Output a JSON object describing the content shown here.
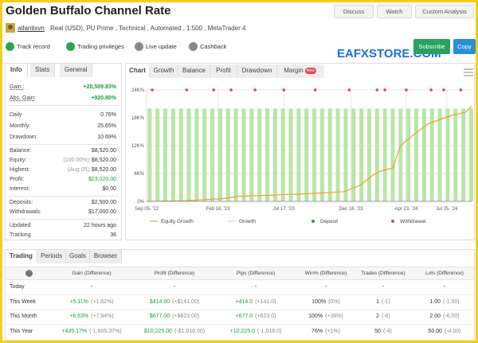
{
  "header": {
    "title": "Golden Buffalo Channel Rate",
    "buttons": [
      "Discuss",
      "Watch",
      "Custom Analysis"
    ],
    "user": "atlantisvn",
    "account": "Real (USD), PU Prime , Technical , Automated , 1:500 , MetaTrader 4",
    "badges": [
      "Track record",
      "Trading privileges",
      "Live update",
      "Cashback"
    ],
    "subscribe": "Subscribe",
    "copy": "Copy",
    "watermark": "EAFXSTORE.COM"
  },
  "info": {
    "tabs": [
      "Info",
      "Stats",
      "General"
    ],
    "rows": [
      {
        "label": "Gain :",
        "value": "+20,509.83%",
        "color": "#1a9c3e"
      },
      {
        "label": "Abs. Gain:",
        "value": "+920.80%",
        "color": "#1a9c3e"
      },
      {
        "label": "Daily",
        "value": "0.76%"
      },
      {
        "label": "Monthly:",
        "value": "25.65%"
      },
      {
        "label": "Drawdown:",
        "value": "10.69%"
      },
      {
        "label": "Balance:",
        "value": "$8,520.00"
      },
      {
        "label": "Equity:",
        "note": "(100.00%)",
        "value": "$8,520.00"
      },
      {
        "label": "Highest:",
        "note": "(Aug 05)",
        "value": "$8,520.00"
      },
      {
        "label": "Profit:",
        "value": "$23,020.00",
        "color": "#1a9c3e"
      },
      {
        "label": "Interest:",
        "value": "$0.00"
      },
      {
        "label": "Deposits:",
        "value": "$2,500.00"
      },
      {
        "label": "Withdrawals:",
        "value": "$17,000.00"
      },
      {
        "label": "Updated",
        "value": "22 hours ago"
      },
      {
        "label": "Tracking",
        "value": "36"
      }
    ]
  },
  "chart_tabs": [
    "Chart",
    "Growth",
    "Balance",
    "Profit",
    "Drawdown",
    "Margin"
  ],
  "chart_tab_badge": "New",
  "chart_data": {
    "type": "line",
    "xlim": [
      "2022-09-05",
      "2024-09-20"
    ],
    "xticks": [
      {
        "value": "2022-09-05",
        "label": "Sep 05, '22"
      },
      {
        "value": "2023-02-16",
        "label": "Feb 16, '23"
      },
      {
        "value": "2023-07-17",
        "label": "Jul 17, '23"
      },
      {
        "value": "2023-12-18",
        "label": "Dec 18, '23"
      },
      {
        "value": "2024-04-23",
        "label": "Apr 23, '24"
      },
      {
        "value": "2024-07-25",
        "label": "Jul 25, '24"
      }
    ],
    "ylim": [
      0,
      24000
    ],
    "yticks": [
      {
        "value": 0,
        "label": "0%"
      },
      {
        "value": 6000,
        "label": "6K%"
      },
      {
        "value": 12000,
        "label": "12K%"
      },
      {
        "value": 18000,
        "label": "18K%"
      },
      {
        "value": 24000,
        "label": "24K%"
      }
    ],
    "grid": true,
    "series": [
      {
        "name": "Equity Growth",
        "type": "line",
        "color": "#f0a030",
        "x": [
          "2022-09-05",
          "2022-12-06",
          "2023-03-01",
          "2023-04-07",
          "2023-07-08",
          "2023-09-20",
          "2023-12-03",
          "2024-01-09",
          "2024-02-06",
          "2024-02-24",
          "2024-03-23",
          "2024-04-10",
          "2024-04-29",
          "2024-05-21",
          "2024-06-14",
          "2024-07-20",
          "2024-08-09",
          "2024-09-06",
          "2024-09-20"
        ],
        "values": [
          0,
          150,
          600,
          1100,
          1400,
          1700,
          2100,
          3500,
          5600,
          6500,
          7200,
          12000,
          13500,
          15200,
          16800,
          18000,
          18600,
          19200,
          20509.83
        ]
      },
      {
        "name": "Growth",
        "type": "bar",
        "color": "#b9e6a6",
        "x": [
          "2022-09-12",
          "2022-09-30",
          "2022-10-18",
          "2022-11-05",
          "2022-11-23",
          "2022-12-11",
          "2022-12-29",
          "2023-01-16",
          "2023-02-03",
          "2023-02-21",
          "2023-03-11",
          "2023-03-29",
          "2023-04-16",
          "2023-05-04",
          "2023-05-22",
          "2023-06-09",
          "2023-06-27",
          "2023-07-15",
          "2023-08-02",
          "2023-08-20",
          "2023-09-07",
          "2023-09-25",
          "2023-10-13",
          "2023-10-31",
          "2023-11-18",
          "2023-12-06",
          "2023-12-24",
          "2024-01-11",
          "2024-01-29",
          "2024-02-16",
          "2024-03-05",
          "2024-03-23",
          "2024-04-10",
          "2024-04-28",
          "2024-05-16",
          "2024-06-03",
          "2024-06-21",
          "2024-07-09",
          "2024-07-27",
          "2024-08-14",
          "2024-09-01",
          "2024-09-19"
        ],
        "values": [
          20000,
          20000,
          20000,
          20000,
          20000,
          20000,
          20000,
          20000,
          20000,
          20000,
          20000,
          20000,
          20000,
          20000,
          20000,
          20000,
          20000,
          20000,
          20000,
          20000,
          20000,
          20000,
          20000,
          20000,
          20000,
          20000,
          20000,
          20000,
          20000,
          20000,
          20000,
          20000,
          20000,
          20000,
          20000,
          20000,
          20000,
          20000,
          20000,
          20000,
          20000,
          20000
        ]
      }
    ],
    "markers": [
      {
        "name": "Deposit",
        "color": "#2a9d3a",
        "x": []
      },
      {
        "name": "Withdrawal",
        "color": "#e04848",
        "x": [
          "2022-09-18",
          "2022-12-06",
          "2023-02-06",
          "2023-03-18",
          "2023-05-12",
          "2023-07-17",
          "2023-09-27",
          "2023-12-14",
          "2024-02-16",
          "2024-03-05",
          "2024-04-23",
          "2024-06-19",
          "2024-07-18",
          "2024-08-26"
        ]
      }
    ]
  },
  "table": {
    "tabs": [
      "Trading",
      "Periods",
      "Goals",
      "Browser"
    ],
    "headers": [
      "Gain (Difference)",
      "Profit (Difference)",
      "Pips (Difference)",
      "Win% (Difference)",
      "Trades (Difference)",
      "Lots (Difference)"
    ],
    "rows": [
      {
        "label": "Today",
        "cells": [
          [
            "-"
          ],
          [
            "-"
          ],
          [
            "-"
          ],
          [
            "-"
          ],
          [
            "-"
          ],
          [
            "-"
          ]
        ]
      },
      {
        "label": "This Week",
        "cells": [
          [
            "+5.11%",
            "(+1.62%)"
          ],
          [
            "$414.00",
            "(+$141.00)"
          ],
          [
            "+414.0",
            "(+141.0)"
          ],
          [
            "100%",
            "(0%)"
          ],
          [
            "1",
            "(-1)"
          ],
          [
            "1.00",
            "(-1.00)"
          ]
        ]
      },
      {
        "label": "This Month",
        "cells": [
          [
            "+8.63%",
            "(+7.94%)"
          ],
          [
            "$677.00",
            "(+$623.00)"
          ],
          [
            "+677.0",
            "(+623.0)"
          ],
          [
            "100%",
            "(+38%)"
          ],
          [
            "2",
            "(-6)"
          ],
          [
            "2.00",
            "(-6.00)"
          ]
        ]
      },
      {
        "label": "This Year",
        "cells": [
          [
            "+435.17%",
            "(-1,605.37%)"
          ],
          [
            "$10,225.00",
            "(-$1,018.00)"
          ],
          [
            "+10,225.0",
            "(-1,018.0)"
          ],
          [
            "76%",
            "(+1%)"
          ],
          [
            "50",
            "(-4)"
          ],
          [
            "50.00",
            "(-4.00)"
          ]
        ]
      }
    ]
  }
}
